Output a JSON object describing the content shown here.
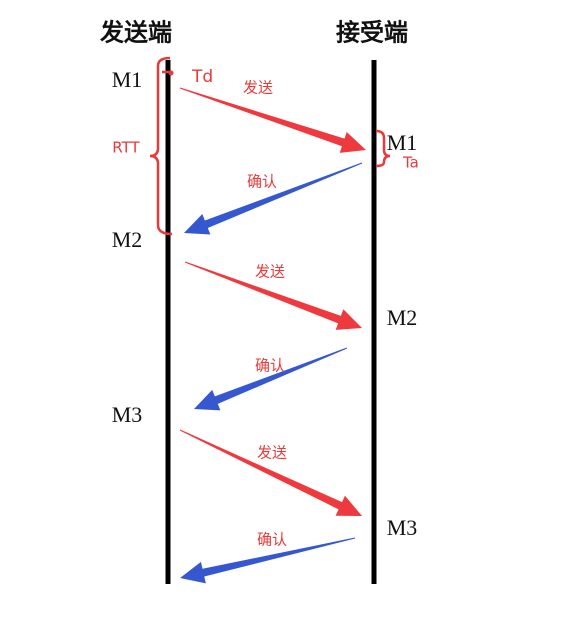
{
  "header": {
    "sender": "发送端",
    "receiver": "接受端"
  },
  "sender_messages": [
    "M1",
    "M2",
    "M3"
  ],
  "receiver_messages": [
    "M1",
    "M2",
    "M3"
  ],
  "arrows": [
    "发送",
    "确认",
    "发送",
    "确认",
    "发送",
    "确认"
  ],
  "annotations": {
    "td": "Td",
    "rtt": "RTT",
    "ta": "Ta"
  }
}
